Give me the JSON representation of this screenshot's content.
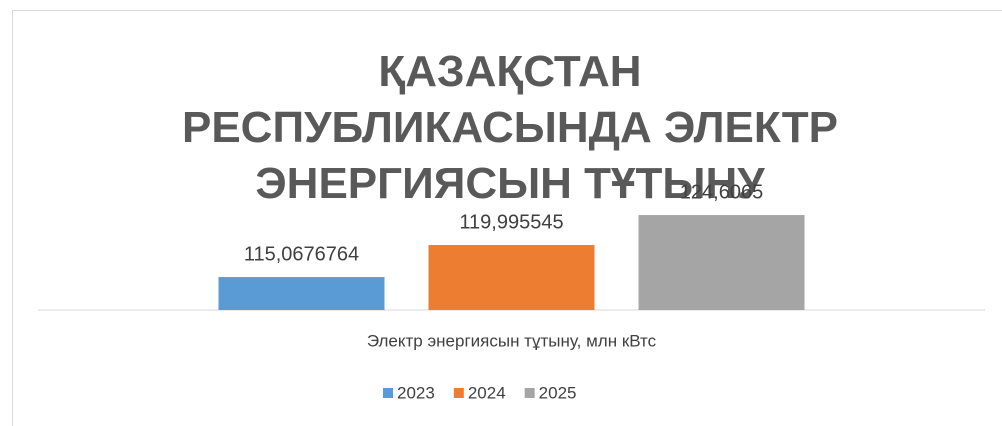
{
  "chart_data": {
    "type": "bar",
    "title": "ҚАЗАҚСТАН РЕСПУБЛИКАСЫНДА ЭЛЕКТР ЭНЕРГИЯСЫН ТҰТЫНУ",
    "categories": [
      "Электр энергиясын тұтыну, млн кВтс"
    ],
    "series": [
      {
        "name": "2023",
        "color": "#5b9bd5",
        "values": [
          115.0676764
        ],
        "value_labels": [
          "115,0676764"
        ]
      },
      {
        "name": "2024",
        "color": "#ed7d31",
        "values": [
          119.995545
        ],
        "value_labels": [
          "119,995545"
        ]
      },
      {
        "name": "2025",
        "color": "#a5a5a5",
        "values": [
          124.6065
        ],
        "value_labels": [
          "124,6065"
        ]
      }
    ],
    "ylim": [
      110,
      126
    ],
    "legend": "bottom"
  }
}
